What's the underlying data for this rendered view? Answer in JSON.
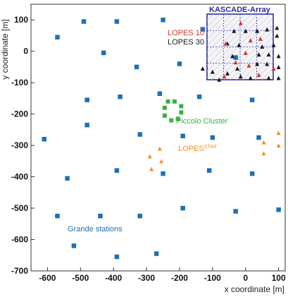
{
  "chart_data": {
    "type": "scatter",
    "title": "",
    "xlabel": "x coordinate [m]",
    "ylabel": "y coordinate [m]",
    "xlim": [
      -650,
      120
    ],
    "ylim": [
      -700,
      150
    ],
    "xticks": [
      -600,
      -500,
      -400,
      -300,
      -200,
      -100,
      0,
      100
    ],
    "yticks": [
      100,
      0,
      -100,
      -200,
      -300,
      -400,
      -500,
      -600,
      -700
    ],
    "grid": false,
    "colors": {
      "grande": "#1f6fb5",
      "piccolo": "#3cb043",
      "lopes10": "#d9312b",
      "lopes30": "#1a1a1a",
      "lopesstar": "#f0902a",
      "kascade": "#2a2aa0"
    },
    "series": [
      {
        "name": "Grande stations",
        "marker": "square",
        "points": [
          [
            -570,
            45
          ],
          [
            -490,
            95
          ],
          [
            -390,
            95
          ],
          [
            -250,
            100
          ],
          [
            -130,
            70
          ],
          [
            -430,
            -5
          ],
          [
            -330,
            -50
          ],
          [
            -200,
            -40
          ],
          [
            -30,
            -20
          ],
          [
            -480,
            -155
          ],
          [
            -380,
            -145
          ],
          [
            -260,
            -135
          ],
          [
            -140,
            -145
          ],
          [
            20,
            -155
          ],
          [
            -480,
            -235
          ],
          [
            -610,
            -280
          ],
          [
            -320,
            -265
          ],
          [
            -190,
            -270
          ],
          [
            -100,
            -275
          ],
          [
            40,
            -275
          ],
          [
            -390,
            -380
          ],
          [
            -250,
            -390
          ],
          [
            -110,
            -380
          ],
          [
            20,
            -390
          ],
          [
            -540,
            -405
          ],
          [
            -570,
            -525
          ],
          [
            -440,
            -525
          ],
          [
            -320,
            -525
          ],
          [
            -190,
            -500
          ],
          [
            -30,
            -510
          ],
          [
            100,
            -505
          ],
          [
            -520,
            -620
          ],
          [
            -390,
            -655
          ],
          [
            -270,
            -645
          ]
        ]
      },
      {
        "name": "Piccolo Cluster",
        "marker": "square",
        "points": [
          [
            -235,
            -160
          ],
          [
            -215,
            -160
          ],
          [
            -195,
            -175
          ],
          [
            -195,
            -195
          ],
          [
            -205,
            -215
          ],
          [
            -225,
            -220
          ],
          [
            -245,
            -205
          ],
          [
            -245,
            -180
          ]
        ]
      },
      {
        "name": "LOPES 10",
        "marker": "triangle",
        "points": [
          [
            -15,
            90
          ],
          [
            -60,
            25
          ],
          [
            15,
            35
          ],
          [
            45,
            40
          ],
          [
            -30,
            -35
          ],
          [
            10,
            -45
          ],
          [
            -65,
            -80
          ],
          [
            40,
            -75
          ],
          [
            85,
            -55
          ],
          [
            0,
            -5
          ]
        ]
      },
      {
        "name": "LOPES 30",
        "marker": "triangle",
        "points": [
          [
            -130,
            -55
          ],
          [
            -100,
            -65
          ],
          [
            -80,
            -90
          ],
          [
            -55,
            -70
          ],
          [
            -35,
            65
          ],
          [
            0,
            65
          ],
          [
            35,
            65
          ],
          [
            65,
            70
          ],
          [
            95,
            75
          ],
          [
            -55,
            25
          ],
          [
            -20,
            20
          ],
          [
            50,
            15
          ],
          [
            85,
            20
          ],
          [
            95,
            50
          ],
          [
            -40,
            -15
          ],
          [
            40,
            -10
          ],
          [
            70,
            -10
          ],
          [
            100,
            -15
          ],
          [
            -25,
            -55
          ],
          [
            35,
            -40
          ],
          [
            65,
            -40
          ],
          [
            100,
            -50
          ],
          [
            -15,
            -80
          ],
          [
            15,
            -85
          ],
          [
            70,
            -85
          ],
          [
            100,
            -85
          ]
        ]
      },
      {
        "name": "LOPES",
        "marker": "triangle",
        "points": [
          [
            -290,
            -335
          ],
          [
            -285,
            -375
          ],
          [
            -260,
            -310
          ],
          [
            -255,
            -350
          ],
          [
            55,
            -290
          ],
          [
            55,
            -325
          ],
          [
            100,
            -260
          ],
          [
            100,
            -300
          ]
        ]
      }
    ],
    "annotations": {
      "lopes10": "LOPES 10",
      "lopes30": "LOPES 30",
      "kascade": "KASCADE-Array",
      "piccolo": "Piccolo Cluster",
      "lopesstar": "LOPES",
      "lopesstar_sup": "STAR",
      "grande": "Grande stations"
    }
  }
}
